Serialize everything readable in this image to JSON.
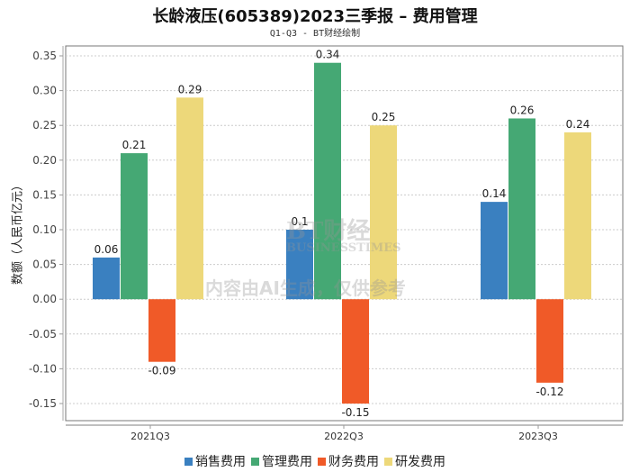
{
  "chart_data": {
    "type": "bar",
    "title": "长龄液压(605389)2023三季报 – 费用管理",
    "subtitle": "Q1-Q3 - BT财经绘制",
    "xlabel": "",
    "ylabel": "数额（人民币亿元）",
    "ylim": [
      -0.15,
      0.35
    ],
    "yticks": [
      "0.35",
      "0.30",
      "0.25",
      "0.20",
      "0.15",
      "0.10",
      "0.05",
      "0.00",
      "-0.05",
      "-0.10",
      "-0.15"
    ],
    "categories": [
      "2021Q3",
      "2022Q3",
      "2023Q3"
    ],
    "series": [
      {
        "name": "销售费用",
        "color": "#3a80c0",
        "values": [
          0.06,
          0.1,
          0.14
        ],
        "labels": [
          "0.06",
          "0.1",
          "0.14"
        ]
      },
      {
        "name": "管理费用",
        "color": "#45a874",
        "values": [
          0.21,
          0.34,
          0.26
        ],
        "labels": [
          "0.21",
          "0.34",
          "0.26"
        ]
      },
      {
        "name": "财务费用",
        "color": "#f05a28",
        "values": [
          -0.09,
          -0.15,
          -0.12
        ],
        "labels": [
          "-0.09",
          "-0.15",
          "-0.12"
        ]
      },
      {
        "name": "研发费用",
        "color": "#edd87a",
        "values": [
          0.29,
          0.25,
          0.24
        ],
        "labels": [
          "0.29",
          "0.25",
          "0.24"
        ]
      }
    ],
    "grid": true,
    "legend_position": "bottom"
  },
  "watermark": {
    "brand": "BT财经",
    "sub": "BUSINESSTIMES",
    "notice": "内容由AI生成，仅供参考"
  }
}
